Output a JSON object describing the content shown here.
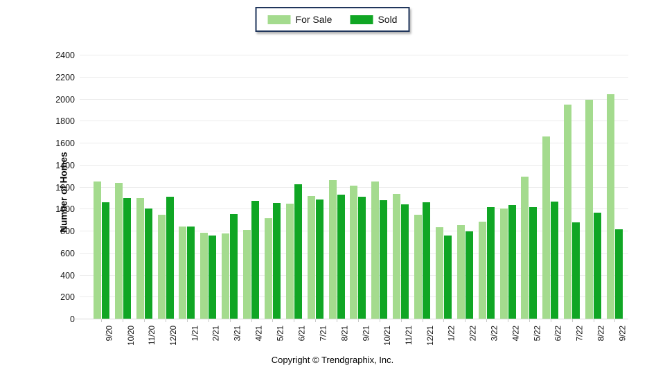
{
  "colors": {
    "for_sale": "#a4db8e",
    "sold": "#10a624",
    "legend_border": "#20365c",
    "gridline": "#ebebeb",
    "axis_line": "#d8d8d8",
    "tick_mark": "#c9c9c9",
    "text": "#151515"
  },
  "footer": {
    "copyright": "Copyright © Trendgraphix, Inc."
  },
  "chart_data": {
    "type": "bar",
    "title": "",
    "xlabel": "",
    "ylabel": "Number of Homes",
    "ylim": [
      0,
      2400
    ],
    "y_ticks": [
      0,
      200,
      400,
      600,
      800,
      1000,
      1200,
      1400,
      1600,
      1800,
      2000,
      2200,
      2400
    ],
    "grid": "horizontal",
    "legend_position": "top-center",
    "categories": [
      "9/20",
      "10/20",
      "11/20",
      "12/20",
      "1/21",
      "2/21",
      "3/21",
      "4/21",
      "5/21",
      "6/21",
      "7/21",
      "8/21",
      "9/21",
      "10/21",
      "11/21",
      "12/21",
      "1/22",
      "2/22",
      "3/22",
      "4/22",
      "5/22",
      "6/22",
      "7/22",
      "8/22",
      "9/22"
    ],
    "series": [
      {
        "name": "For Sale",
        "color": "#a4db8e",
        "values": [
          1255,
          1240,
          1105,
          950,
          845,
          790,
          780,
          810,
          920,
          1055,
          1120,
          1265,
          1215,
          1255,
          1140,
          950,
          840,
          855,
          890,
          1010,
          1295,
          1665,
          1955,
          2000,
          2045
        ]
      },
      {
        "name": "Sold",
        "color": "#10a624",
        "values": [
          1065,
          1105,
          1005,
          1115,
          845,
          765,
          960,
          1080,
          1060,
          1230,
          1090,
          1135,
          1115,
          1085,
          1045,
          1065,
          765,
          800,
          1020,
          1040,
          1020,
          1070,
          885,
          970,
          820
        ]
      }
    ]
  }
}
